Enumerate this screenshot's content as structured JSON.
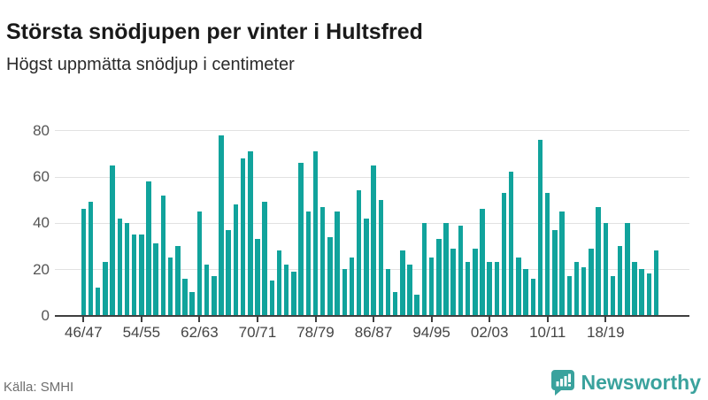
{
  "header": {
    "title": "Största snödjupen per vinter i Hultsfred",
    "subtitle": "Högst uppmätta snödjup i centimeter"
  },
  "footer": {
    "source": "Källa: SMHI",
    "brand": "Newsworthy",
    "brand_icon": "bar-chart-speech-bubble-icon"
  },
  "colors": {
    "bar": "#11a39c",
    "brand_teal": "#3aa29d",
    "gridline": "#e2e2e2",
    "axis": "#3f3f3f"
  },
  "chart_data": {
    "type": "bar",
    "title": "Största snödjupen per vinter i Hultsfred",
    "subtitle": "Högst uppmätta snödjup i centimeter",
    "xlabel": "",
    "ylabel": "centimeter",
    "ylim": [
      0,
      80
    ],
    "yticks": [
      0,
      20,
      40,
      60,
      80
    ],
    "grid": "horizontal",
    "legend": "none",
    "xtick_every": 8,
    "xtick_labels": [
      "46/47",
      "54/55",
      "62/63",
      "70/71",
      "78/79",
      "86/87",
      "94/95",
      "02/03",
      "10/11",
      "18/19"
    ],
    "categories": [
      "46/47",
      "47/48",
      "48/49",
      "49/50",
      "50/51",
      "51/52",
      "52/53",
      "53/54",
      "54/55",
      "55/56",
      "56/57",
      "57/58",
      "58/59",
      "59/60",
      "60/61",
      "61/62",
      "62/63",
      "63/64",
      "64/65",
      "65/66",
      "66/67",
      "67/68",
      "68/69",
      "69/70",
      "70/71",
      "71/72",
      "72/73",
      "73/74",
      "74/75",
      "75/76",
      "76/77",
      "77/78",
      "78/79",
      "79/80",
      "80/81",
      "81/82",
      "82/83",
      "83/84",
      "84/85",
      "85/86",
      "86/87",
      "87/88",
      "88/89",
      "89/90",
      "90/91",
      "91/92",
      "92/93",
      "93/94",
      "94/95",
      "95/96",
      "96/97",
      "97/98",
      "98/99",
      "99/00",
      "00/01",
      "01/02",
      "02/03",
      "03/04",
      "04/05",
      "05/06",
      "06/07",
      "07/08",
      "08/09",
      "09/10",
      "10/11",
      "11/12",
      "12/13",
      "13/14",
      "14/15",
      "15/16",
      "16/17",
      "17/18",
      "18/19",
      "19/20",
      "20/21",
      "21/22",
      "22/23",
      "23/24",
      "24/25",
      "25/26"
    ],
    "values": [
      46,
      49,
      12,
      23,
      65,
      42,
      40,
      35,
      35,
      58,
      31,
      52,
      25,
      30,
      16,
      10,
      45,
      22,
      17,
      78,
      37,
      48,
      68,
      71,
      33,
      49,
      15,
      28,
      22,
      19,
      66,
      45,
      71,
      47,
      34,
      45,
      20,
      25,
      54,
      42,
      65,
      50,
      20,
      10,
      28,
      22,
      9,
      40,
      25,
      33,
      40,
      29,
      39,
      23,
      29,
      46,
      23,
      23,
      53,
      62,
      25,
      20,
      16,
      76,
      53,
      37,
      45,
      17,
      23,
      21,
      29,
      47,
      40,
      17,
      30,
      40,
      23,
      20,
      18,
      28
    ]
  }
}
